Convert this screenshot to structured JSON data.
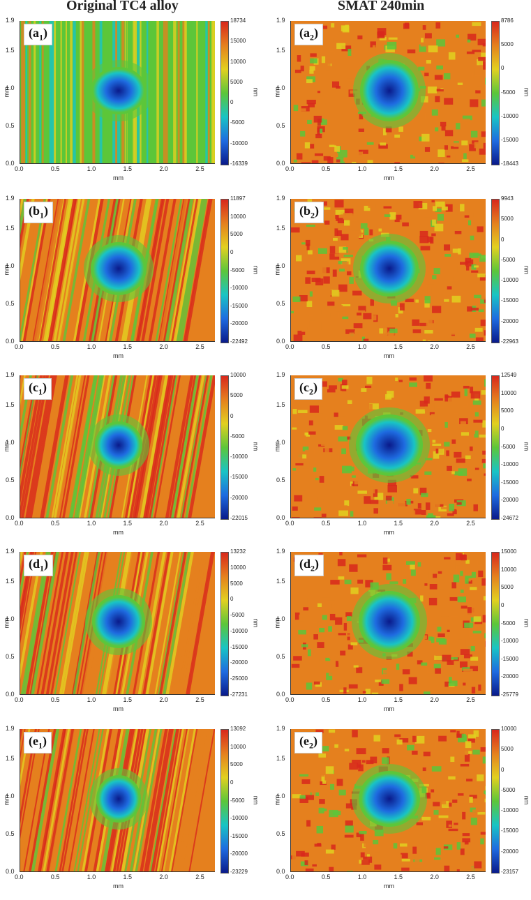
{
  "column_titles": [
    "Original TC4 alloy",
    "SMAT 240min"
  ],
  "axes": {
    "x_label": "mm",
    "y_label": "mm",
    "x_ticks": [
      "0.0",
      "0.5",
      "1.0",
      "1.5",
      "2.0",
      "2.5"
    ],
    "y_ticks": [
      "0.0",
      "0.5",
      "1.0",
      "1.5",
      "1.9"
    ],
    "unit": "nm"
  },
  "panels": [
    {
      "label": "a",
      "sub": "1",
      "cbar_ticks": [
        "18734",
        "15000",
        "10000",
        "5000",
        "0",
        "-5000",
        "-10000",
        "-16339"
      ],
      "colorbar_min": -16339,
      "colorbar_max": 18734
    },
    {
      "label": "a",
      "sub": "2",
      "cbar_ticks": [
        "8786",
        "5000",
        "0",
        "-5000",
        "-10000",
        "-15000",
        "-18443"
      ],
      "colorbar_min": -18443,
      "colorbar_max": 8786
    },
    {
      "label": "b",
      "sub": "1",
      "cbar_ticks": [
        "11897",
        "10000",
        "5000",
        "0",
        "-5000",
        "-10000",
        "-15000",
        "-20000",
        "-22492"
      ],
      "colorbar_min": -22492,
      "colorbar_max": 11897
    },
    {
      "label": "b",
      "sub": "2",
      "cbar_ticks": [
        "9943",
        "5000",
        "0",
        "-5000",
        "-10000",
        "-15000",
        "-20000",
        "-22963"
      ],
      "colorbar_min": -22963,
      "colorbar_max": 9943
    },
    {
      "label": "c",
      "sub": "1",
      "cbar_ticks": [
        "10000",
        "5000",
        "0",
        "-5000",
        "-10000",
        "-15000",
        "-20000",
        "-22015"
      ],
      "colorbar_min": -22015,
      "colorbar_max": 10000
    },
    {
      "label": "c",
      "sub": "2",
      "cbar_ticks": [
        "12549",
        "10000",
        "5000",
        "0",
        "-5000",
        "-10000",
        "-15000",
        "-20000",
        "-24672"
      ],
      "colorbar_min": -24672,
      "colorbar_max": 12549
    },
    {
      "label": "d",
      "sub": "1",
      "cbar_ticks": [
        "13232",
        "10000",
        "5000",
        "0",
        "-5000",
        "-10000",
        "-15000",
        "-20000",
        "-25000",
        "-27231"
      ],
      "colorbar_min": -27231,
      "colorbar_max": 13232
    },
    {
      "label": "d",
      "sub": "2",
      "cbar_ticks": [
        "15000",
        "10000",
        "5000",
        "0",
        "-5000",
        "-10000",
        "-15000",
        "-20000",
        "-25779"
      ],
      "colorbar_min": -25779,
      "colorbar_max": 15000
    },
    {
      "label": "e",
      "sub": "1",
      "cbar_ticks": [
        "13092",
        "10000",
        "5000",
        "0",
        "-5000",
        "-10000",
        "-15000",
        "-20000",
        "-23229"
      ],
      "colorbar_min": -23229,
      "colorbar_max": 13092
    },
    {
      "label": "e",
      "sub": "2",
      "cbar_ticks": [
        "10000",
        "5000",
        "0",
        "-5000",
        "-10000",
        "-15000",
        "-20000",
        "-23157"
      ],
      "colorbar_min": -23157,
      "colorbar_max": 10000
    }
  ],
  "colors": {
    "deep": "#0a1a8a",
    "blue": "#1e6be0",
    "cyan": "#19c4c4",
    "green": "#5cc63a",
    "yellow": "#e2d020",
    "orange": "#e5801e",
    "red": "#d8281c"
  }
}
